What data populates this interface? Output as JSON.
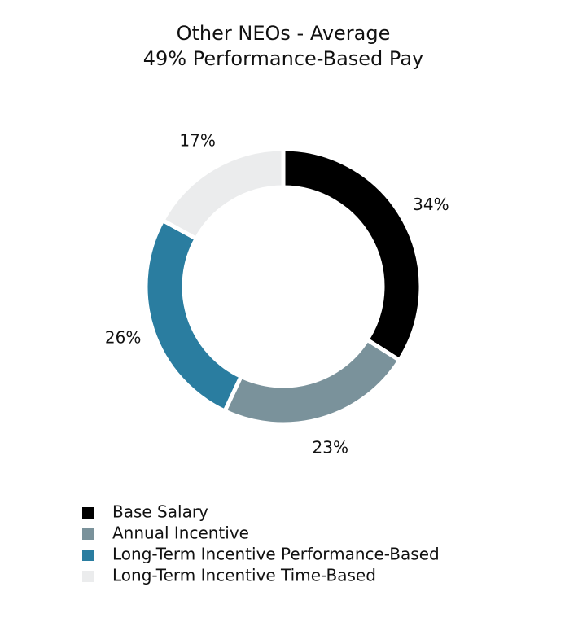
{
  "chart_data": {
    "type": "donut",
    "title": "Other NEOs - Average",
    "subtitle": "49% Performance-Based Pay",
    "categories": [
      "Base Salary",
      "Annual Incentive",
      "Long-Term Incentive Performance-Based",
      "Long-Term Incentive Time-Based"
    ],
    "values": [
      34,
      23,
      26,
      17
    ],
    "value_labels": [
      "34%",
      "23%",
      "26%",
      "17%"
    ],
    "colors": [
      "#000000",
      "#7a929b",
      "#2a7da0",
      "#ebeced"
    ],
    "legend": "bottom-left"
  }
}
